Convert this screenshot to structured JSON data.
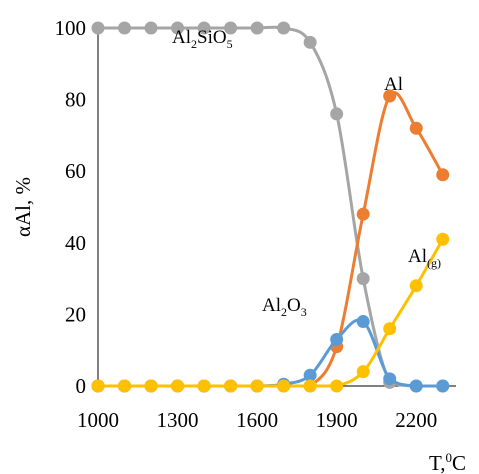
{
  "chart_data": {
    "type": "line",
    "xlabel": {
      "base": "T,",
      "sup": "0",
      "rest": "C"
    },
    "ylabel": "αAl, %",
    "xlim": [
      1000,
      2350
    ],
    "ylim": [
      0,
      100
    ],
    "x_ticks": [
      "1000",
      "1300",
      "1600",
      "1900",
      "2200"
    ],
    "y_ticks": [
      "0",
      "20",
      "40",
      "60",
      "80",
      "100"
    ],
    "x": [
      1000,
      1100,
      1200,
      1300,
      1400,
      1500,
      1600,
      1700,
      1800,
      1900,
      2000,
      2100,
      2200,
      2300
    ],
    "series": [
      {
        "name": "Al2SiO5",
        "label_parts": [
          {
            "t": "Al"
          },
          {
            "t": "2",
            "s": "sub"
          },
          {
            "t": "SiO"
          },
          {
            "t": "5",
            "s": "sub"
          }
        ],
        "color": "#a5a5a5",
        "values": [
          100,
          100,
          100,
          100,
          100,
          100,
          100,
          100,
          96,
          76,
          30,
          1,
          0,
          0
        ]
      },
      {
        "name": "Al",
        "label_parts": [
          {
            "t": "Al"
          }
        ],
        "color": "#ed7d31",
        "values": [
          0,
          0,
          0,
          0,
          0,
          0,
          0,
          0,
          0,
          11,
          48,
          81,
          72,
          59
        ]
      },
      {
        "name": "Al2O3",
        "label_parts": [
          {
            "t": "Al"
          },
          {
            "t": "2",
            "s": "sub"
          },
          {
            "t": "O"
          },
          {
            "t": "3",
            "s": "sub"
          }
        ],
        "color": "#5b9bd5",
        "values": [
          0,
          0,
          0,
          0,
          0,
          0,
          0,
          0.5,
          3,
          13,
          18,
          2,
          0,
          0
        ]
      },
      {
        "name": "Al(g)",
        "label_parts": [
          {
            "t": "Al"
          },
          {
            "t": "(g)",
            "s": "sub"
          }
        ],
        "color": "#ffc000",
        "values": [
          0,
          0,
          0,
          0,
          0,
          0,
          0,
          0,
          0,
          0,
          4,
          16,
          28,
          41
        ]
      }
    ],
    "grid": false,
    "legend": "none"
  }
}
